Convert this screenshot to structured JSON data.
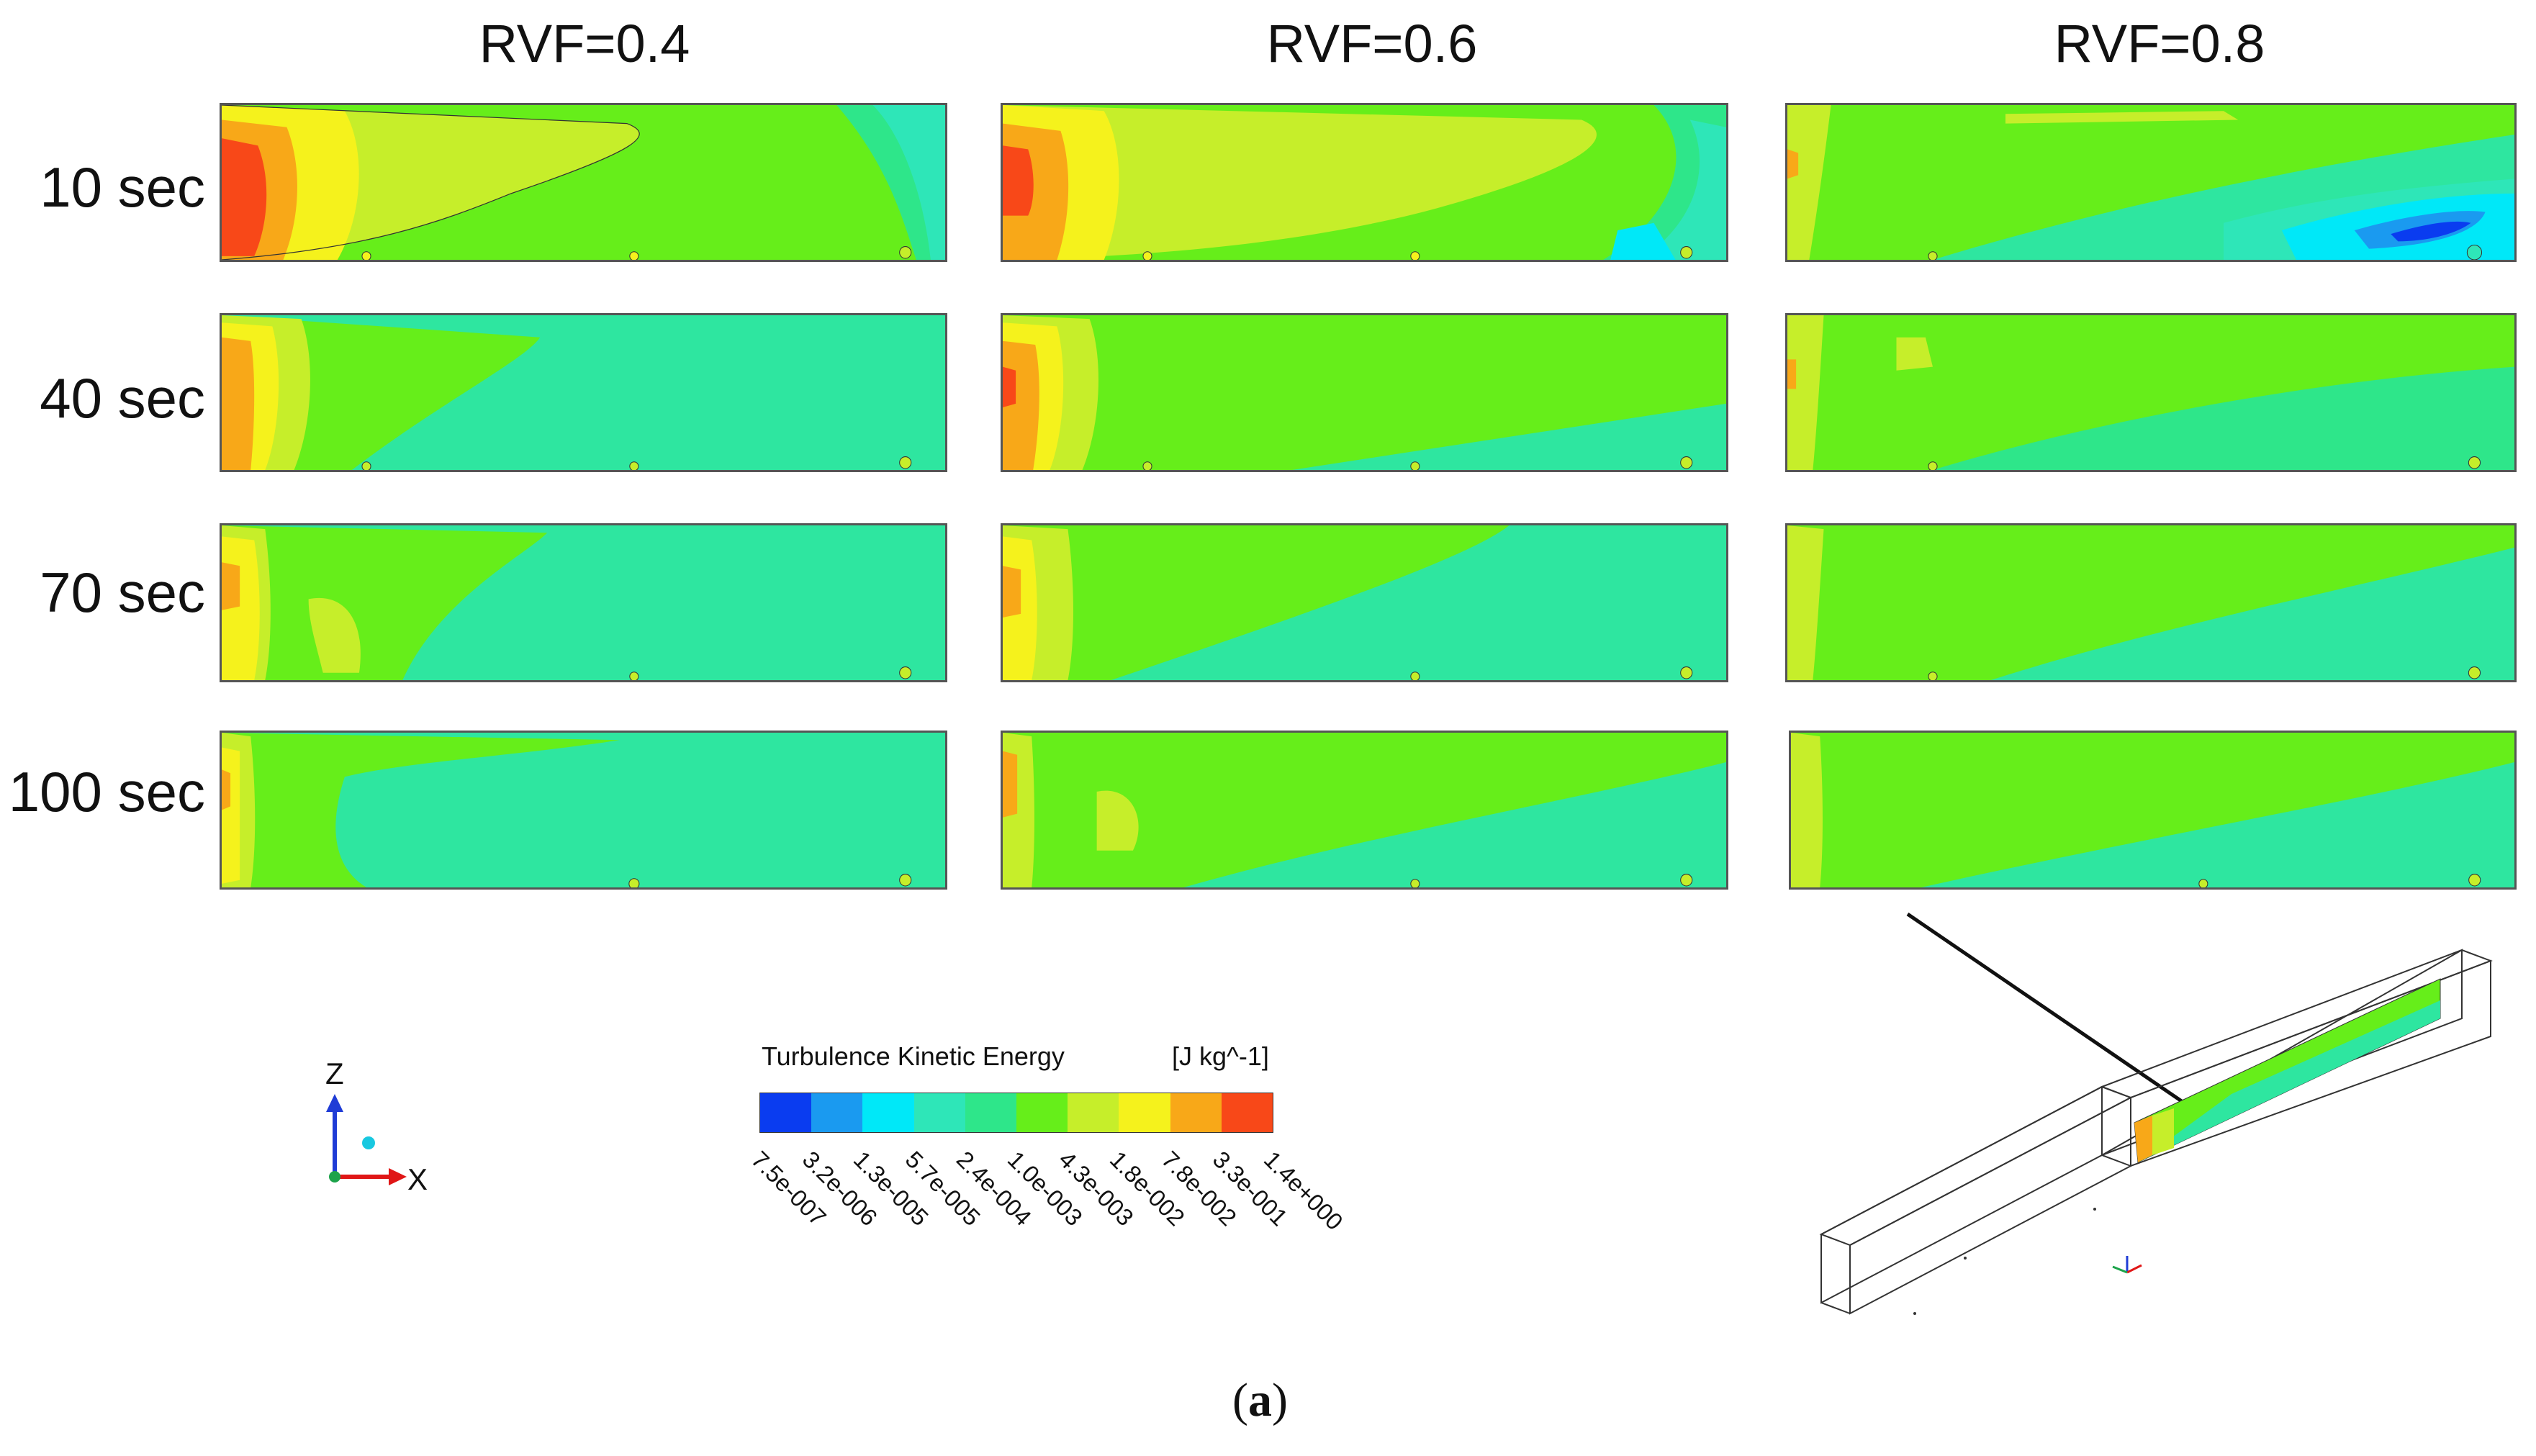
{
  "columns": [
    {
      "label": "RVF=0.4"
    },
    {
      "label": "RVF=0.6"
    },
    {
      "label": "RVF=0.8"
    }
  ],
  "rows": [
    {
      "label": "10 sec"
    },
    {
      "label": "40 sec"
    },
    {
      "label": "70 sec"
    },
    {
      "label": "100 sec"
    }
  ],
  "legend": {
    "title": "Turbulence Kinetic Energy",
    "unit": "[J kg^-1]",
    "ticks": [
      "7.5e-007",
      "3.2e-006",
      "1.3e-005",
      "5.7e-005",
      "2.4e-004",
      "1.0e-003",
      "4.3e-003",
      "1.8e-002",
      "7.8e-002",
      "3.3e-001",
      "1.4e+000"
    ],
    "colors": [
      "#0a3cf0",
      "#1a9af0",
      "#00e8f8",
      "#2ee6b8",
      "#2ee68a",
      "#66ee1a",
      "#c6ee2a",
      "#f5f21c",
      "#f8a818",
      "#f84818"
    ]
  },
  "axes": {
    "z": "Z",
    "x": "X"
  },
  "caption": {
    "open": "(",
    "letter": "a",
    "close": ")"
  }
}
